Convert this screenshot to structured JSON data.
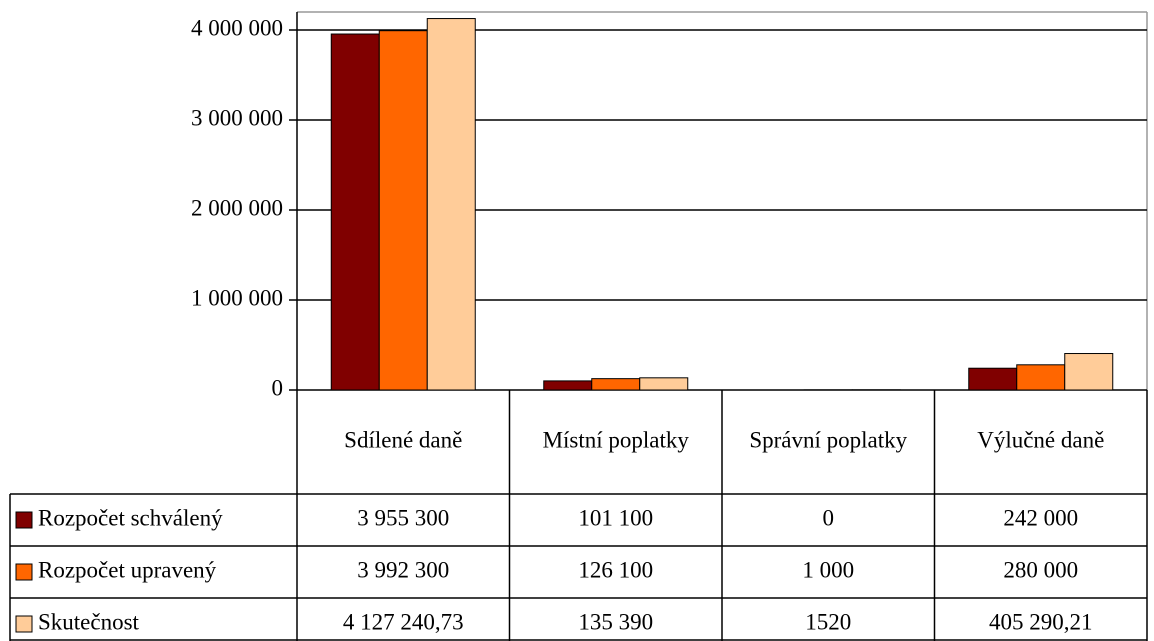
{
  "chart_data": {
    "type": "bar",
    "categories": [
      "Sdílené daně",
      "Místní poplatky",
      "Správní poplatky",
      "Výlučné daně"
    ],
    "series": [
      {
        "name": "Rozpočet schválený",
        "color": "#800000",
        "values": [
          3955300,
          101100,
          0,
          242000
        ],
        "value_labels": [
          "3 955 300",
          "101 100",
          "0",
          "242 000"
        ]
      },
      {
        "name": "Rozpočet upravený",
        "color": "#ff6600",
        "values": [
          3992300,
          126100,
          1000,
          280000
        ],
        "value_labels": [
          "3 992 300",
          "126 100",
          "1 000",
          "280 000"
        ]
      },
      {
        "name": "Skutečnost",
        "color": "#ffcc99",
        "values": [
          4127240.73,
          135390,
          1520,
          405290.21
        ],
        "value_labels": [
          "4 127 240,73",
          "135 390",
          "1520",
          "405 290,21"
        ]
      }
    ],
    "ylim": [
      0,
      4200000
    ],
    "yticks": [
      0,
      {
        "value": 1000000,
        "label": "1 000 000"
      },
      {
        "value": 2000000,
        "label": "2 000 000"
      },
      {
        "value": 3000000,
        "label": "3 000 000"
      },
      {
        "value": 4000000,
        "label": "4 000 000"
      }
    ],
    "grid": true
  }
}
